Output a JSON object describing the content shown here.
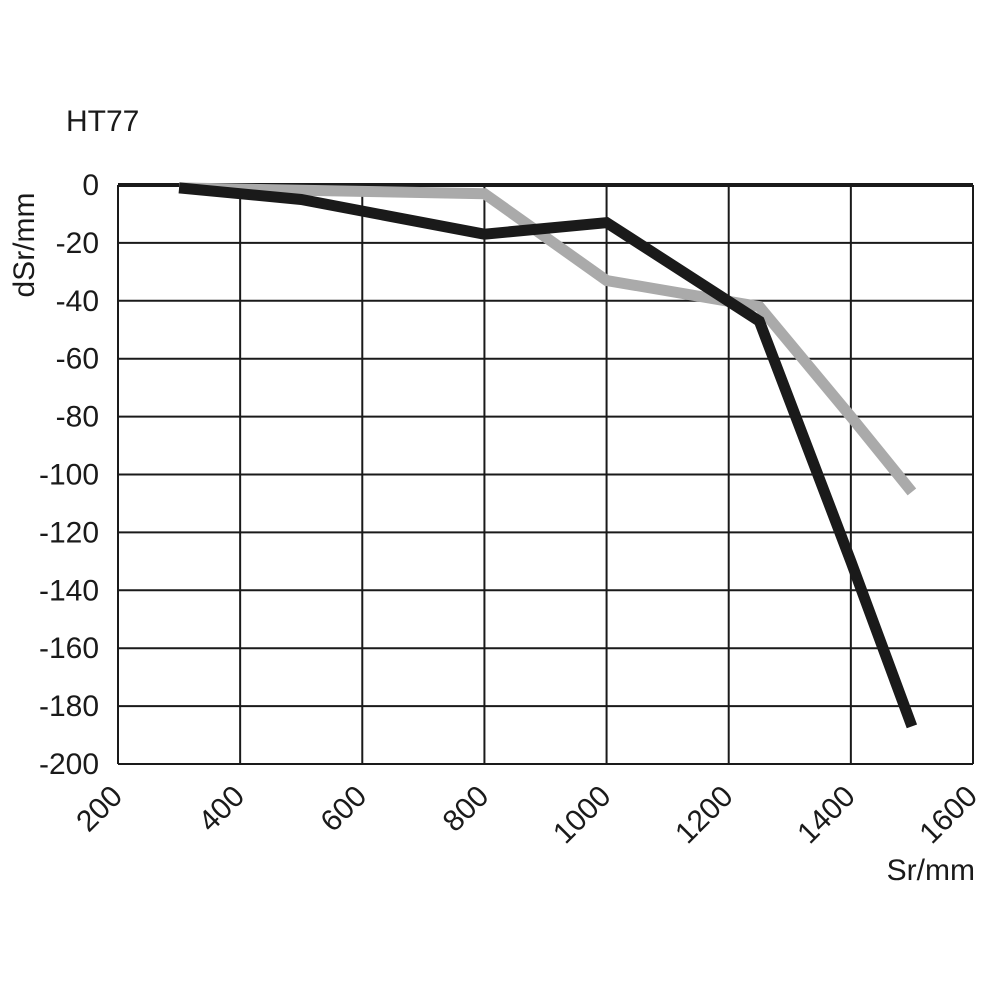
{
  "chart_data": {
    "type": "line",
    "title": "HT77",
    "xlabel": "Sr/mm",
    "ylabel": "dSr/mm",
    "xlim": [
      200,
      1600
    ],
    "ylim": [
      -200,
      0
    ],
    "xticks": [
      200,
      400,
      600,
      800,
      1000,
      1200,
      1400,
      1600
    ],
    "yticks": [
      0,
      -20,
      -40,
      -60,
      -80,
      -100,
      -120,
      -140,
      -160,
      -180,
      -200
    ],
    "grid": true,
    "series": [
      {
        "color": "#1a1a1a",
        "x": [
          300,
          500,
          800,
          1000,
          1250,
          1400,
          1500
        ],
        "y": [
          -1,
          -5,
          -17,
          -13,
          -47,
          -130,
          -187
        ]
      },
      {
        "color": "#aaaaaa",
        "x": [
          300,
          800,
          1000,
          1250,
          1400,
          1500
        ],
        "y": [
          -1,
          -3,
          -33,
          -42,
          -80,
          -106
        ]
      }
    ]
  }
}
